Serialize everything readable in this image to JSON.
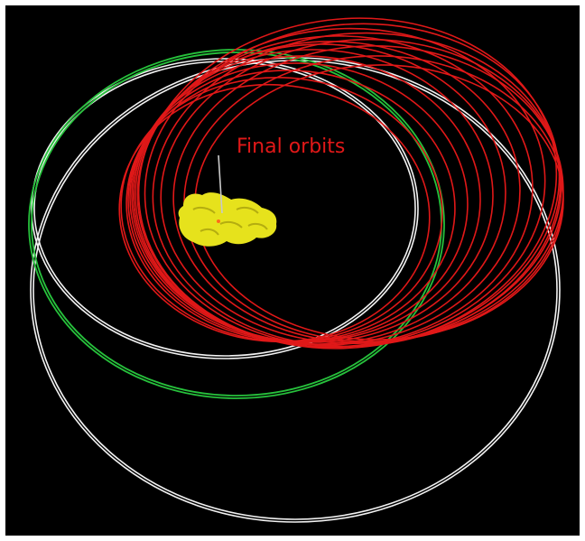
{
  "annotation": {
    "label": "Final orbits"
  },
  "colors": {
    "background": "#000000",
    "frame": "#ffffff",
    "final_orbits": "#e01818",
    "green_orbit": "#27c23c",
    "white_orbit": "#f2f2f2",
    "comet_body": "#e6e21c",
    "comet_shadow": "#b4ad10",
    "pointer": "#c8c8c8"
  },
  "legend": {
    "final_orbits_color_name": "red"
  }
}
